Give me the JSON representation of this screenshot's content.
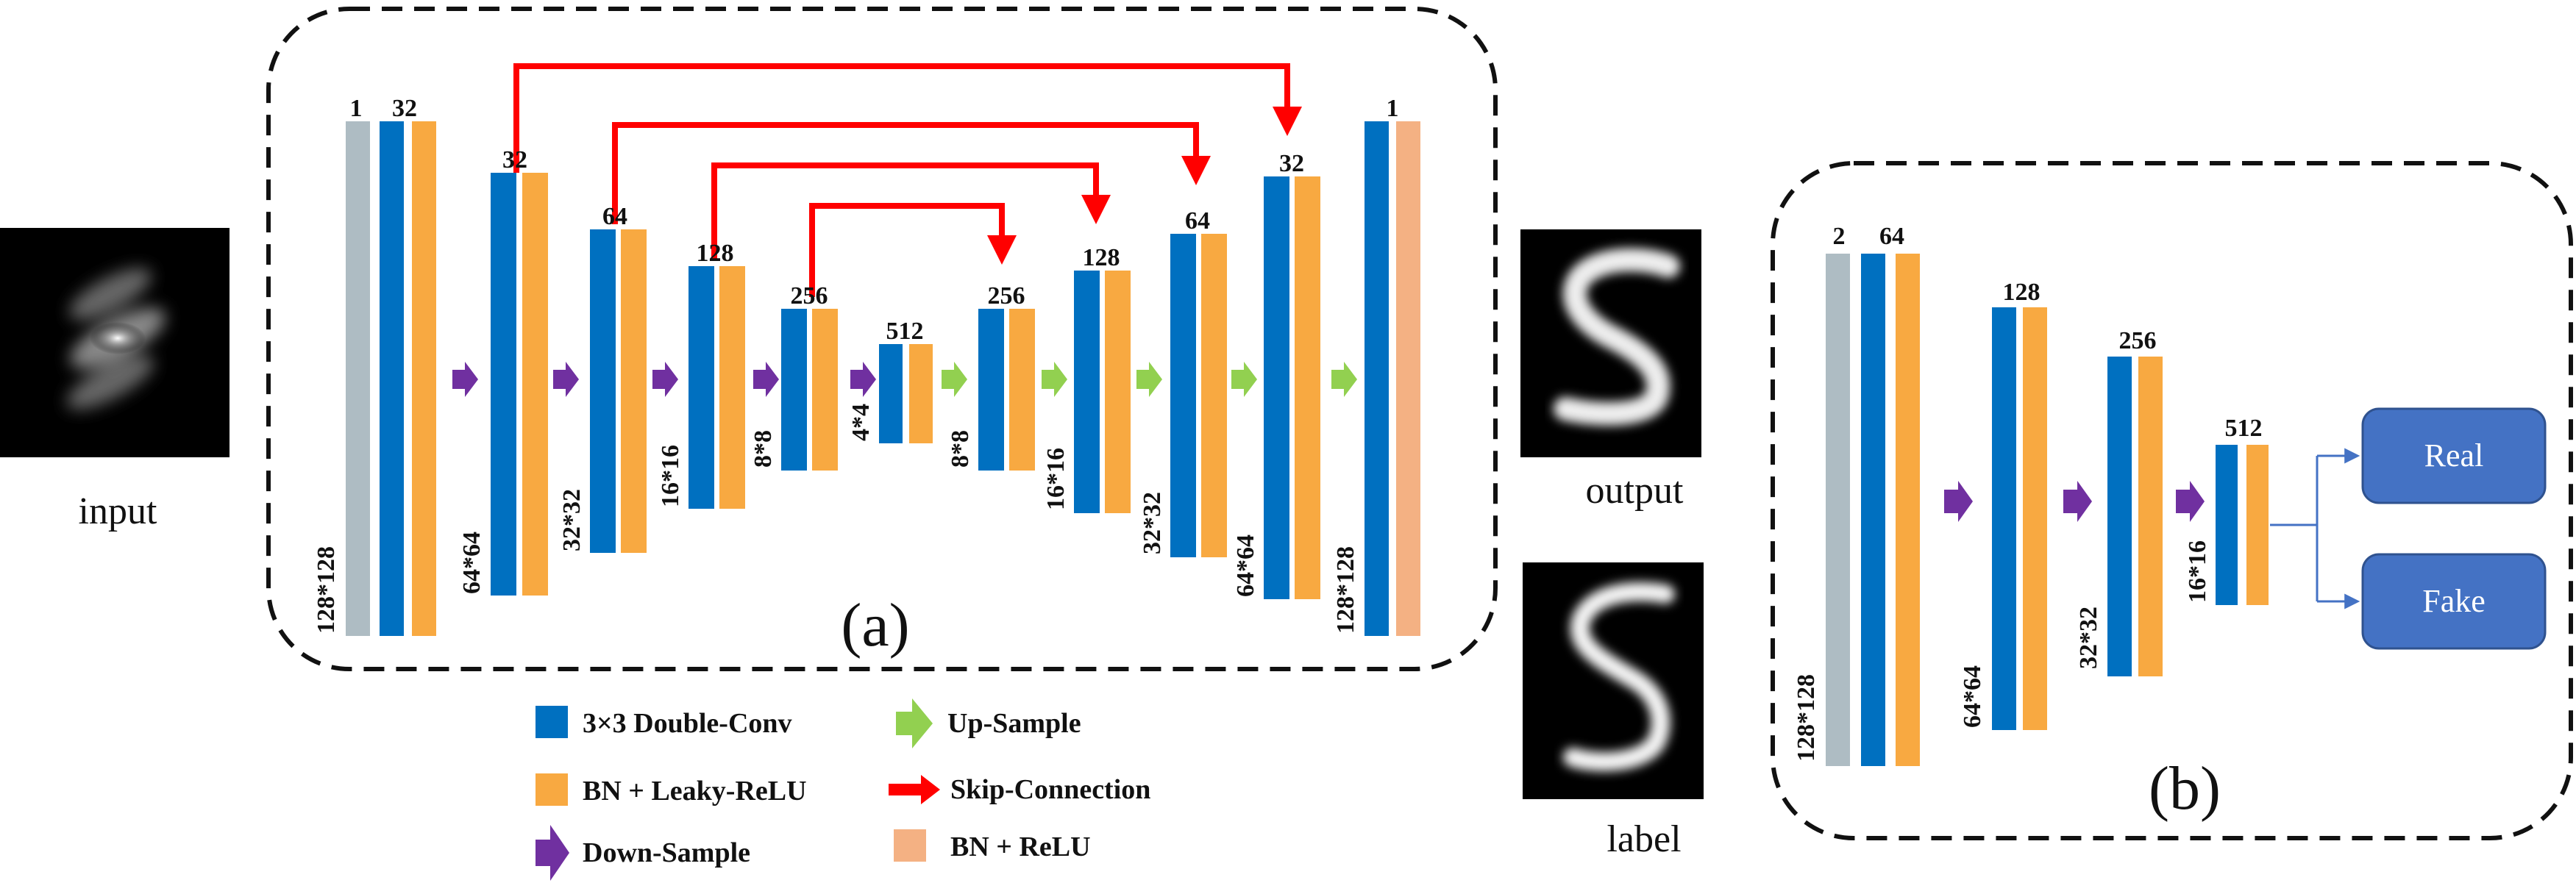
{
  "colors": {
    "conv": "#0070C0",
    "bn_leaky": "#F8A941",
    "bn_relu": "#F4B183",
    "input_bar": "#AEBCC3",
    "down": "#7030A0",
    "up": "#92D050",
    "skip": "#FF0000",
    "button": "#4472C4"
  },
  "images": {
    "input": "input",
    "output": "output",
    "label": "label"
  },
  "panel_labels": {
    "a": "(a)",
    "b": "(b)"
  },
  "generator": {
    "channels": [
      "1",
      "32",
      "32",
      "64",
      "128",
      "256",
      "512",
      "256",
      "128",
      "64",
      "32",
      "1"
    ],
    "sizes": [
      "128*128",
      "64*64",
      "32*32",
      "16*16",
      "8*8",
      "4*4",
      "8*8",
      "16*16",
      "32*32",
      "64*64",
      "128*128"
    ]
  },
  "discriminator": {
    "channels": [
      "2",
      "64",
      "128",
      "256",
      "512"
    ],
    "sizes": [
      "128*128",
      "64*64",
      "32*32",
      "16*16"
    ],
    "outputs": {
      "real": "Real",
      "fake": "Fake"
    }
  },
  "legend": {
    "conv": "3×3 Double-Conv",
    "bn_leaky": "BN + Leaky-ReLU",
    "down": "Down-Sample",
    "up": "Up-Sample",
    "skip": "Skip-Connection",
    "bn_relu": "BN + ReLU"
  }
}
